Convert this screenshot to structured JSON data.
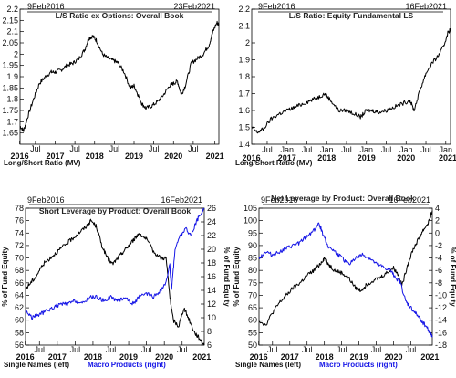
{
  "colors": {
    "primary": "#000000",
    "secondary": "#1515e6"
  },
  "chart_data": [
    {
      "type": "line",
      "title": "L/S Ratio ex Options: Overall Book",
      "start_label": "9Feb2016",
      "end_label": "23Feb2021",
      "caption": "Long/Short Ratio (MV)",
      "x_tick_labels": [
        "Jul",
        "2017",
        "Jan",
        "Jul",
        "2018",
        "Jan",
        "Jul",
        "2019",
        "Jan",
        "Jul",
        "2020",
        "Jan",
        "Jul",
        "Jan"
      ],
      "x_tick_labels_short": [
        "2016",
        "Jul",
        "2017",
        "Jul",
        "2018",
        "Jul",
        "2019",
        "Jul",
        "2020",
        "Jul",
        "2021"
      ],
      "xlim": [
        2016.11,
        2021.15
      ],
      "ylim": [
        1.6,
        2.2
      ],
      "y_ticks": [
        "1.65",
        "1.7",
        "1.75",
        "1.8",
        "1.85",
        "1.9",
        "1.95",
        "2",
        "2.05",
        "2.1",
        "2.15",
        "2.2"
      ],
      "series": [
        {
          "color": "#000000",
          "points": [
            [
              2016.11,
              1.68
            ],
            [
              2016.2,
              1.66
            ],
            [
              2016.3,
              1.72
            ],
            [
              2016.45,
              1.8
            ],
            [
              2016.6,
              1.87
            ],
            [
              2016.75,
              1.9
            ],
            [
              2016.9,
              1.92
            ],
            [
              2017.0,
              1.92
            ],
            [
              2017.15,
              1.93
            ],
            [
              2017.3,
              1.95
            ],
            [
              2017.45,
              1.96
            ],
            [
              2017.6,
              1.98
            ],
            [
              2017.75,
              2.02
            ],
            [
              2017.85,
              2.07
            ],
            [
              2017.95,
              2.08
            ],
            [
              2018.05,
              2.06
            ],
            [
              2018.2,
              2.0
            ],
            [
              2018.35,
              1.98
            ],
            [
              2018.5,
              1.97
            ],
            [
              2018.6,
              1.96
            ],
            [
              2018.75,
              1.92
            ],
            [
              2018.9,
              1.85
            ],
            [
              2019.0,
              1.86
            ],
            [
              2019.1,
              1.82
            ],
            [
              2019.2,
              1.78
            ],
            [
              2019.3,
              1.76
            ],
            [
              2019.45,
              1.77
            ],
            [
              2019.6,
              1.79
            ],
            [
              2019.75,
              1.82
            ],
            [
              2019.9,
              1.86
            ],
            [
              2020.0,
              1.87
            ],
            [
              2020.1,
              1.88
            ],
            [
              2020.2,
              1.82
            ],
            [
              2020.3,
              1.86
            ],
            [
              2020.45,
              1.96
            ],
            [
              2020.6,
              1.98
            ],
            [
              2020.75,
              2.0
            ],
            [
              2020.9,
              2.04
            ],
            [
              2021.0,
              2.1
            ],
            [
              2021.1,
              2.14
            ],
            [
              2021.15,
              2.13
            ]
          ]
        }
      ]
    },
    {
      "type": "line",
      "title": "L/S Ratio: Equity Fundamental LS",
      "start_label": "9Feb2016",
      "end_label": "16Feb2021",
      "caption": "Long/Short Ratio (MV)",
      "xlim": [
        2016.11,
        2021.12
      ],
      "ylim": [
        1.4,
        2.2
      ],
      "y_ticks": [
        "1.4",
        "1.5",
        "1.6",
        "1.7",
        "1.8",
        "1.9",
        "2",
        "2.1",
        "2.2"
      ],
      "series": [
        {
          "color": "#000000",
          "points": [
            [
              2016.11,
              1.5
            ],
            [
              2016.25,
              1.47
            ],
            [
              2016.4,
              1.49
            ],
            [
              2016.6,
              1.55
            ],
            [
              2016.8,
              1.58
            ],
            [
              2017.0,
              1.6
            ],
            [
              2017.2,
              1.62
            ],
            [
              2017.4,
              1.64
            ],
            [
              2017.6,
              1.66
            ],
            [
              2017.8,
              1.68
            ],
            [
              2017.95,
              1.7
            ],
            [
              2018.1,
              1.66
            ],
            [
              2018.3,
              1.6
            ],
            [
              2018.5,
              1.6
            ],
            [
              2018.7,
              1.58
            ],
            [
              2018.85,
              1.56
            ],
            [
              2019.0,
              1.6
            ],
            [
              2019.15,
              1.6
            ],
            [
              2019.3,
              1.59
            ],
            [
              2019.5,
              1.6
            ],
            [
              2019.7,
              1.62
            ],
            [
              2019.9,
              1.64
            ],
            [
              2020.1,
              1.66
            ],
            [
              2020.2,
              1.6
            ],
            [
              2020.35,
              1.72
            ],
            [
              2020.5,
              1.82
            ],
            [
              2020.65,
              1.88
            ],
            [
              2020.8,
              1.92
            ],
            [
              2020.95,
              1.98
            ],
            [
              2021.05,
              2.06
            ],
            [
              2021.12,
              2.08
            ]
          ]
        }
      ]
    },
    {
      "type": "line",
      "title": "Short Leverage by Product: Overall Book",
      "start_label": "9Feb2016",
      "end_label": "16Feb2021",
      "xlim": [
        2016.11,
        2021.12
      ],
      "ylim": [
        56,
        78
      ],
      "y2lim": [
        6,
        26
      ],
      "y_ticks": [
        "56",
        "58",
        "60",
        "62",
        "64",
        "66",
        "68",
        "70",
        "72",
        "74",
        "76",
        "78"
      ],
      "y2_ticks": [
        "6",
        "8",
        "10",
        "12",
        "14",
        "16",
        "18",
        "20",
        "22",
        "24",
        "26"
      ],
      "ylabel": "% of Fund Equity",
      "y2label": "% of Fund Equity",
      "legend": [
        "Single Names (left)",
        "Macro Products (right)"
      ],
      "series": [
        {
          "name": "Single Names (left)",
          "color": "#000000",
          "axis": "left",
          "points": [
            [
              2016.11,
              65
            ],
            [
              2016.25,
              66
            ],
            [
              2016.4,
              67
            ],
            [
              2016.6,
              69
            ],
            [
              2016.8,
              70
            ],
            [
              2017.0,
              71
            ],
            [
              2017.2,
              72
            ],
            [
              2017.4,
              73
            ],
            [
              2017.6,
              74
            ],
            [
              2017.8,
              75
            ],
            [
              2017.95,
              76
            ],
            [
              2018.1,
              75
            ],
            [
              2018.25,
              72
            ],
            [
              2018.4,
              70
            ],
            [
              2018.55,
              69
            ],
            [
              2018.7,
              70
            ],
            [
              2018.85,
              71
            ],
            [
              2019.0,
              72
            ],
            [
              2019.15,
              73
            ],
            [
              2019.3,
              74
            ],
            [
              2019.5,
              73
            ],
            [
              2019.7,
              71
            ],
            [
              2019.9,
              70
            ],
            [
              2020.05,
              70
            ],
            [
              2020.15,
              64
            ],
            [
              2020.25,
              60
            ],
            [
              2020.4,
              59
            ],
            [
              2020.55,
              62
            ],
            [
              2020.7,
              60
            ],
            [
              2020.85,
              58
            ],
            [
              2021.0,
              57
            ],
            [
              2021.12,
              56
            ]
          ]
        },
        {
          "name": "Macro Products (right)",
          "color": "#1515e6",
          "axis": "right",
          "points": [
            [
              2016.11,
              11
            ],
            [
              2016.3,
              10
            ],
            [
              2016.5,
              10.5
            ],
            [
              2016.7,
              11
            ],
            [
              2016.9,
              11.5
            ],
            [
              2017.1,
              12
            ],
            [
              2017.3,
              12
            ],
            [
              2017.5,
              12.5
            ],
            [
              2017.7,
              12
            ],
            [
              2017.9,
              13
            ],
            [
              2018.1,
              13
            ],
            [
              2018.3,
              12.5
            ],
            [
              2018.5,
              13
            ],
            [
              2018.7,
              12.5
            ],
            [
              2018.9,
              13
            ],
            [
              2019.1,
              12
            ],
            [
              2019.3,
              13
            ],
            [
              2019.5,
              13.5
            ],
            [
              2019.7,
              13
            ],
            [
              2019.9,
              14
            ],
            [
              2020.05,
              15
            ],
            [
              2020.15,
              18
            ],
            [
              2020.2,
              14
            ],
            [
              2020.3,
              20
            ],
            [
              2020.45,
              22
            ],
            [
              2020.6,
              23
            ],
            [
              2020.75,
              22
            ],
            [
              2020.9,
              24
            ],
            [
              2021.0,
              25
            ],
            [
              2021.12,
              26
            ]
          ]
        }
      ]
    },
    {
      "type": "line",
      "title": "Net Leverage by Product: Overall Book",
      "start_label": "9Feb2016",
      "end_label": "16Feb2021",
      "xlim": [
        2016.11,
        2021.12
      ],
      "ylim": [
        50,
        105
      ],
      "y2lim": [
        -18,
        4
      ],
      "y_ticks": [
        "50",
        "55",
        "60",
        "65",
        "70",
        "75",
        "80",
        "85",
        "90",
        "95",
        "100",
        "105"
      ],
      "y2_ticks": [
        "-18",
        "-16",
        "-14",
        "-12",
        "-10",
        "-8",
        "-6",
        "-4",
        "-2",
        "0",
        "2",
        "4"
      ],
      "ylabel": "% of Fund Equity",
      "y2label": "% of Fund Equity",
      "legend": [
        "Single Names (left)",
        "Macro Products (right)"
      ],
      "series": [
        {
          "name": "Single Names (left)",
          "color": "#000000",
          "axis": "left",
          "points": [
            [
              2016.11,
              60
            ],
            [
              2016.3,
              58
            ],
            [
              2016.5,
              63
            ],
            [
              2016.7,
              67
            ],
            [
              2016.9,
              70
            ],
            [
              2017.1,
              73
            ],
            [
              2017.3,
              75
            ],
            [
              2017.5,
              78
            ],
            [
              2017.7,
              80
            ],
            [
              2017.9,
              83
            ],
            [
              2018.0,
              85
            ],
            [
              2018.15,
              82
            ],
            [
              2018.3,
              80
            ],
            [
              2018.5,
              79
            ],
            [
              2018.7,
              77
            ],
            [
              2018.9,
              73
            ],
            [
              2019.05,
              72
            ],
            [
              2019.2,
              74
            ],
            [
              2019.4,
              76
            ],
            [
              2019.6,
              77
            ],
            [
              2019.8,
              79
            ],
            [
              2020.0,
              81
            ],
            [
              2020.15,
              78
            ],
            [
              2020.25,
              74
            ],
            [
              2020.4,
              82
            ],
            [
              2020.55,
              88
            ],
            [
              2020.7,
              92
            ],
            [
              2020.85,
              96
            ],
            [
              2021.0,
              99
            ],
            [
              2021.12,
              104
            ]
          ]
        },
        {
          "name": "Macro Products (right)",
          "color": "#1515e6",
          "axis": "right",
          "points": [
            [
              2016.11,
              -4
            ],
            [
              2016.3,
              -3
            ],
            [
              2016.5,
              -3.5
            ],
            [
              2016.7,
              -3
            ],
            [
              2016.9,
              -2.5
            ],
            [
              2017.1,
              -2
            ],
            [
              2017.3,
              -1.5
            ],
            [
              2017.5,
              -0.5
            ],
            [
              2017.7,
              0.5
            ],
            [
              2017.85,
              1.5
            ],
            [
              2017.95,
              0
            ],
            [
              2018.1,
              -2
            ],
            [
              2018.3,
              -3
            ],
            [
              2018.5,
              -4
            ],
            [
              2018.7,
              -5
            ],
            [
              2018.9,
              -4
            ],
            [
              2019.1,
              -3.5
            ],
            [
              2019.3,
              -4
            ],
            [
              2019.5,
              -5
            ],
            [
              2019.7,
              -5.5
            ],
            [
              2019.9,
              -6
            ],
            [
              2020.05,
              -7
            ],
            [
              2020.2,
              -8
            ],
            [
              2020.35,
              -11
            ],
            [
              2020.5,
              -12
            ],
            [
              2020.65,
              -13
            ],
            [
              2020.8,
              -14
            ],
            [
              2020.95,
              -15
            ],
            [
              2021.05,
              -16
            ],
            [
              2021.12,
              -16.5
            ]
          ]
        }
      ]
    }
  ]
}
